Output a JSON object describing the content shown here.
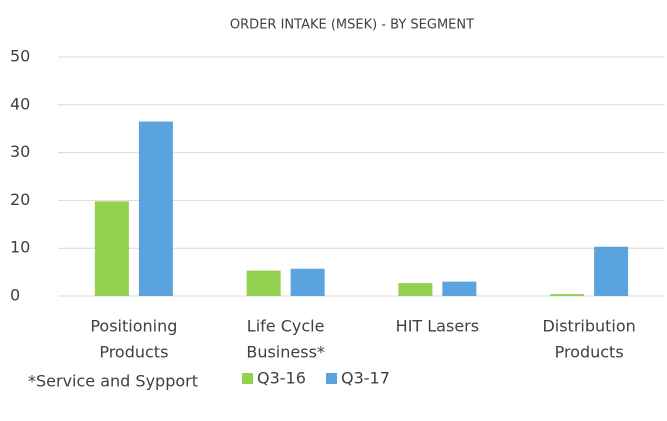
{
  "chart_data": {
    "type": "bar",
    "title": "ORDER INTAKE (MSEK) - BY SEGMENT",
    "categories": [
      [
        "Positioning",
        "Products"
      ],
      [
        "Life Cycle",
        "Business*"
      ],
      [
        "HIT Lasers"
      ],
      [
        "Distribution",
        "Products"
      ]
    ],
    "series": [
      {
        "name": "Q3-16",
        "color": "#92d050",
        "values": [
          19.8,
          5.3,
          2.7,
          0.4
        ]
      },
      {
        "name": "Q3-17",
        "color": "#5ba3de",
        "values": [
          36.5,
          5.7,
          3.0,
          10.3
        ]
      }
    ],
    "ylim": [
      0,
      50
    ],
    "yticks": [
      0,
      10,
      20,
      30,
      40,
      50
    ],
    "grid": true,
    "annotation": "*Service and Sypport"
  }
}
